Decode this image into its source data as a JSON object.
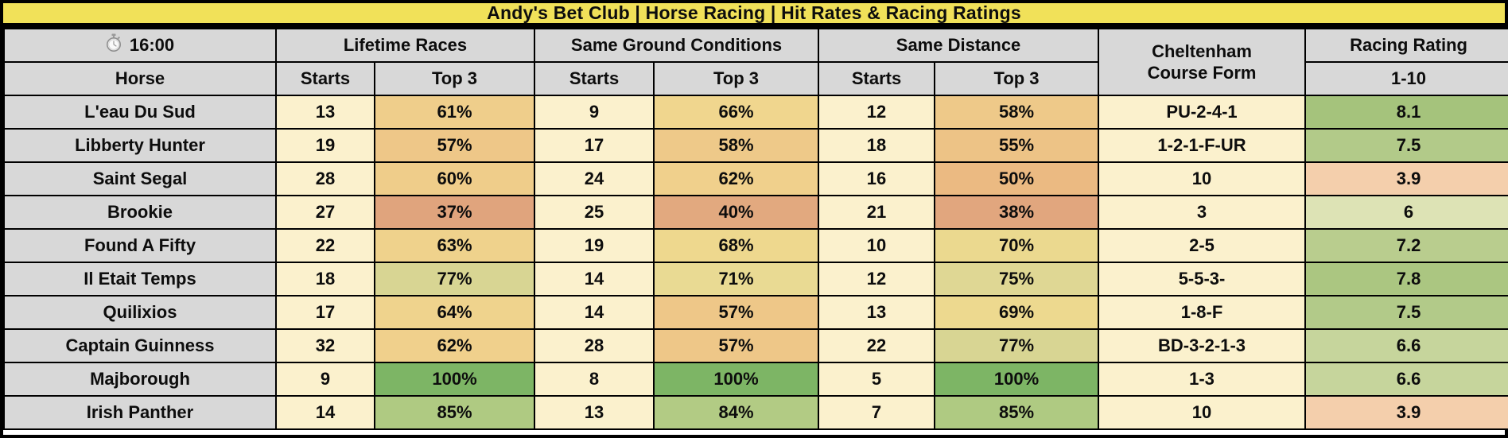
{
  "title": "Andy's Bet Club | Horse Racing | Hit Rates & Racing Ratings",
  "colors": {
    "title_bg": "#F1E159",
    "header_bg": "#D8D8D8",
    "cream_bg": "#FBF1CD",
    "border": "#000000",
    "scale_low": "#E0A47D",
    "scale_mid": "#EFD38D",
    "scale_high": "#7DB565"
  },
  "header": {
    "time": "16:00",
    "clock_icon": "stopwatch-icon",
    "groups": [
      {
        "label": "Lifetime Races"
      },
      {
        "label": "Same Ground Conditions"
      },
      {
        "label": "Same Distance"
      }
    ],
    "course_form": "Cheltenham\nCourse Form",
    "rating": "Racing Rating",
    "sub": {
      "horse": "Horse",
      "starts": "Starts",
      "top3": "Top 3",
      "scale": "1-10"
    }
  },
  "chart_data": {
    "type": "table",
    "title": "Andy's Bet Club | Horse Racing | Hit Rates & Racing Ratings",
    "race_time": "16:00",
    "column_groups": [
      "Lifetime Races",
      "Same Ground Conditions",
      "Same Distance"
    ],
    "columns": [
      "Horse",
      "Starts",
      "Top 3",
      "Starts",
      "Top 3",
      "Starts",
      "Top 3",
      "Cheltenham Course Form",
      "Racing Rating 1-10"
    ],
    "rows": [
      {
        "horse": "L'eau Du Sud",
        "lr_starts": "13",
        "lr_top3": "61%",
        "lr_top3_bg": "#EFCE8B",
        "sgc_starts": "9",
        "sgc_top3": "66%",
        "sgc_top3_bg": "#F0D68E",
        "sd_starts": "12",
        "sd_top3": "58%",
        "sd_top3_bg": "#EEC989",
        "course_form": "PU-2-4-1",
        "rating": "8.1",
        "rating_bg": "#A5C37C"
      },
      {
        "horse": "Libberty Hunter",
        "lr_starts": "19",
        "lr_top3": "57%",
        "lr_top3_bg": "#EEC788",
        "sgc_starts": "17",
        "sgc_top3": "58%",
        "sgc_top3_bg": "#EEC989",
        "sd_starts": "18",
        "sd_top3": "55%",
        "sd_top3_bg": "#EDC386",
        "course_form": "1-2-1-F-UR",
        "rating": "7.5",
        "rating_bg": "#B2CA89"
      },
      {
        "horse": "Saint Segal",
        "lr_starts": "28",
        "lr_top3": "60%",
        "lr_top3_bg": "#EFCD8A",
        "sgc_starts": "24",
        "sgc_top3": "62%",
        "sgc_top3_bg": "#F0D08C",
        "sd_starts": "16",
        "sd_top3": "50%",
        "sd_top3_bg": "#EBBA82",
        "course_form": "10",
        "rating": "3.9",
        "rating_bg": "#F4CFAC"
      },
      {
        "horse": "Brookie",
        "lr_starts": "27",
        "lr_top3": "37%",
        "lr_top3_bg": "#E0A47D",
        "sgc_starts": "25",
        "sgc_top3": "40%",
        "sgc_top3_bg": "#E2A97F",
        "sd_starts": "21",
        "sd_top3": "38%",
        "sd_top3_bg": "#E1A67E",
        "course_form": "3",
        "rating": "6",
        "rating_bg": "#DDE3B5"
      },
      {
        "horse": "Found A Fifty",
        "lr_starts": "22",
        "lr_top3": "63%",
        "lr_top3_bg": "#EFD28C",
        "sgc_starts": "19",
        "sgc_top3": "68%",
        "sgc_top3_bg": "#EED88E",
        "sd_starts": "10",
        "sd_top3": "70%",
        "sd_top3_bg": "#EBD98F",
        "course_form": "2-5",
        "rating": "7.2",
        "rating_bg": "#B9CD8E"
      },
      {
        "horse": "Il Etait Temps",
        "lr_starts": "18",
        "lr_top3": "77%",
        "lr_top3_bg": "#D8D593",
        "sgc_starts": "14",
        "sgc_top3": "71%",
        "sgc_top3_bg": "#E9DA93",
        "sd_starts": "12",
        "sd_top3": "75%",
        "sd_top3_bg": "#DFD794",
        "course_form": "5-5-3-",
        "rating": "7.8",
        "rating_bg": "#ABC681"
      },
      {
        "horse": "Quilixios",
        "lr_starts": "17",
        "lr_top3": "64%",
        "lr_top3_bg": "#EFD38D",
        "sgc_starts": "14",
        "sgc_top3": "57%",
        "sgc_top3_bg": "#EEC788",
        "sd_starts": "13",
        "sd_top3": "69%",
        "sd_top3_bg": "#EDD98F",
        "course_form": "1-8-F",
        "rating": "7.5",
        "rating_bg": "#B2CA89"
      },
      {
        "horse": "Captain Guinness",
        "lr_starts": "32",
        "lr_top3": "62%",
        "lr_top3_bg": "#F0D08C",
        "sgc_starts": "28",
        "sgc_top3": "57%",
        "sgc_top3_bg": "#EEC788",
        "sd_starts": "22",
        "sd_top3": "77%",
        "sd_top3_bg": "#D8D593",
        "course_form": "BD-3-2-1-3",
        "rating": "6.6",
        "rating_bg": "#C6D59C"
      },
      {
        "horse": "Majborough",
        "lr_starts": "9",
        "lr_top3": "100%",
        "lr_top3_bg": "#7DB565",
        "sgc_starts": "8",
        "sgc_top3": "100%",
        "sgc_top3_bg": "#7DB565",
        "sd_starts": "5",
        "sd_top3": "100%",
        "sd_top3_bg": "#7DB565",
        "course_form": "1-3",
        "rating": "6.6",
        "rating_bg": "#C6D59C"
      },
      {
        "horse": "Irish Panther",
        "lr_starts": "14",
        "lr_top3": "85%",
        "lr_top3_bg": "#AFCA82",
        "sgc_starts": "13",
        "sgc_top3": "84%",
        "sgc_top3_bg": "#B2CB84",
        "sd_starts": "7",
        "sd_top3": "85%",
        "sd_top3_bg": "#AFCA82",
        "course_form": "10",
        "rating": "3.9",
        "rating_bg": "#F4CFAC"
      }
    ]
  }
}
